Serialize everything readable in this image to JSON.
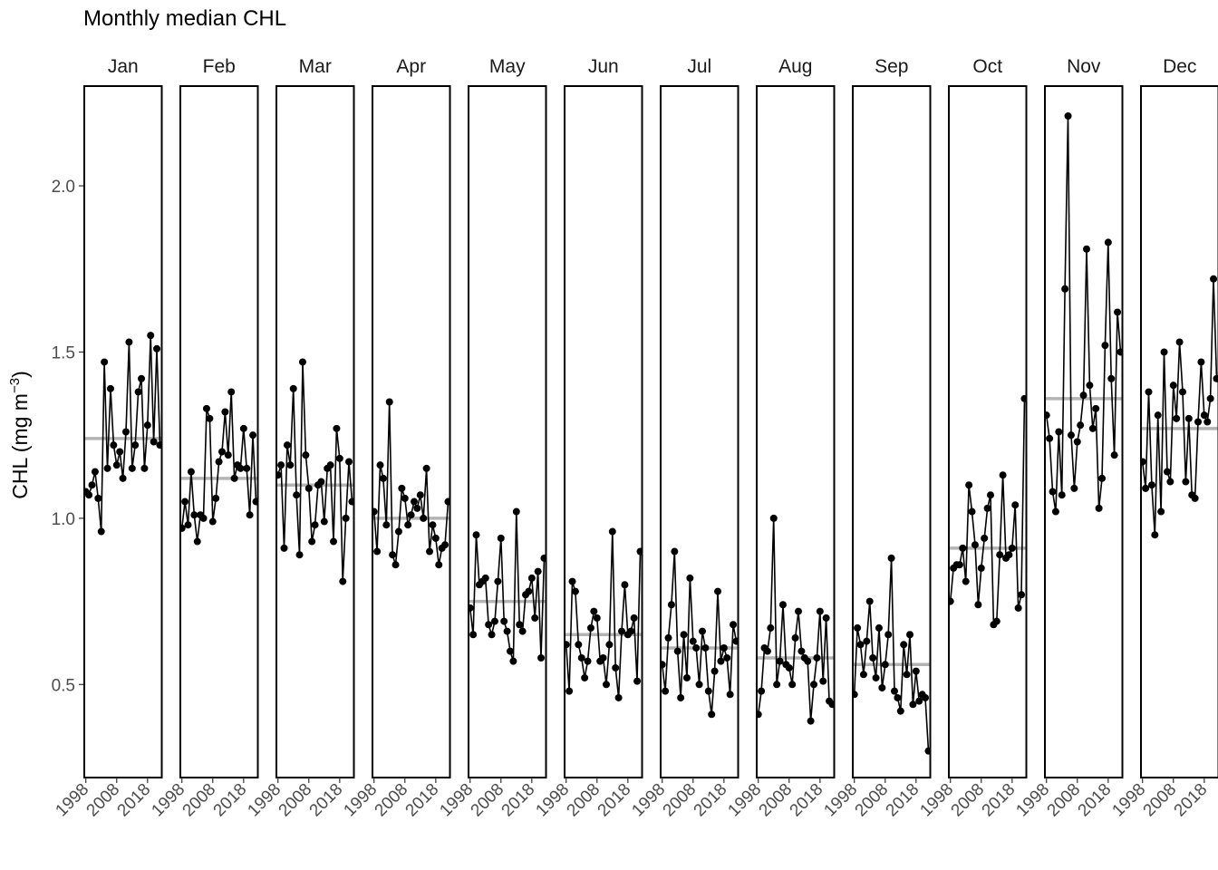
{
  "chart_data": {
    "type": "line",
    "title": "Monthly median CHL",
    "ylabel": "CHL (mg m⁻³)",
    "ylabel_base": "CHL (mg m",
    "ylabel_sup": "−3",
    "ylabel_close": ")",
    "xlabel": "",
    "ylim": [
      0.22,
      2.3
    ],
    "y_ticks": [
      0.5,
      1.0,
      1.5,
      2.0
    ],
    "y_tick_labels": [
      "0.5",
      "1.0",
      "1.5",
      "2.0"
    ],
    "xlim": [
      1997.5,
      2022.6
    ],
    "x_ticks": [
      1998,
      2008,
      2018
    ],
    "x_tick_labels": [
      "1998",
      "2008",
      "2018"
    ],
    "grid": false,
    "legend": "none",
    "colors": {
      "series": "#000000",
      "reference_line": "#b3b3b3",
      "tick_label": "#4d4d4d"
    },
    "years": [
      1998,
      1999,
      2000,
      2001,
      2002,
      2003,
      2004,
      2005,
      2006,
      2007,
      2008,
      2009,
      2010,
      2011,
      2012,
      2013,
      2014,
      2015,
      2016,
      2017,
      2018,
      2019,
      2020,
      2021,
      2022
    ],
    "facets": [
      {
        "month": "Jan",
        "reference": 1.24,
        "values": [
          1.08,
          1.07,
          1.1,
          1.14,
          1.06,
          0.96,
          1.47,
          1.15,
          1.39,
          1.22,
          1.16,
          1.2,
          1.12,
          1.26,
          1.53,
          1.15,
          1.22,
          1.38,
          1.42,
          1.15,
          1.28,
          1.55,
          1.23,
          1.51,
          1.22
        ]
      },
      {
        "month": "Feb",
        "reference": 1.12,
        "values": [
          0.97,
          1.05,
          0.98,
          1.14,
          1.01,
          0.93,
          1.01,
          1.0,
          1.33,
          1.3,
          0.99,
          1.06,
          1.17,
          1.2,
          1.32,
          1.19,
          1.38,
          1.12,
          1.16,
          1.15,
          1.27,
          1.15,
          1.01,
          1.25,
          1.05
        ]
      },
      {
        "month": "Mar",
        "reference": 1.1,
        "values": [
          1.13,
          1.16,
          0.91,
          1.22,
          1.16,
          1.39,
          1.07,
          0.89,
          1.47,
          1.19,
          1.09,
          0.93,
          0.98,
          1.1,
          1.11,
          0.99,
          1.15,
          1.16,
          0.93,
          1.27,
          1.18,
          0.81,
          1.0,
          1.17,
          1.05
        ]
      },
      {
        "month": "Apr",
        "reference": 1.0,
        "values": [
          1.02,
          0.9,
          1.16,
          1.12,
          0.98,
          1.35,
          0.89,
          0.86,
          0.96,
          1.09,
          1.06,
          0.98,
          1.01,
          1.05,
          1.03,
          1.07,
          1.0,
          1.15,
          0.9,
          0.98,
          0.94,
          0.86,
          0.91,
          0.92,
          1.05
        ]
      },
      {
        "month": "May",
        "reference": 0.75,
        "values": [
          0.73,
          0.65,
          0.95,
          0.8,
          0.81,
          0.82,
          0.68,
          0.65,
          0.69,
          0.81,
          0.94,
          0.69,
          0.66,
          0.6,
          0.57,
          1.02,
          0.68,
          0.66,
          0.77,
          0.78,
          0.82,
          0.7,
          0.84,
          0.58,
          0.88
        ]
      },
      {
        "month": "Jun",
        "reference": 0.65,
        "values": [
          0.62,
          0.48,
          0.81,
          0.78,
          0.62,
          0.58,
          0.52,
          0.57,
          0.67,
          0.72,
          0.7,
          0.57,
          0.58,
          0.5,
          0.62,
          0.96,
          0.55,
          0.46,
          0.66,
          0.8,
          0.65,
          0.66,
          0.7,
          0.51,
          0.9
        ]
      },
      {
        "month": "Jul",
        "reference": 0.61,
        "values": [
          0.56,
          0.48,
          0.64,
          0.74,
          0.9,
          0.6,
          0.46,
          0.65,
          0.52,
          0.82,
          0.63,
          0.61,
          0.5,
          0.66,
          0.61,
          0.48,
          0.41,
          0.54,
          0.78,
          0.57,
          0.61,
          0.58,
          0.47,
          0.68,
          0.63
        ]
      },
      {
        "month": "Aug",
        "reference": 0.58,
        "values": [
          0.41,
          0.48,
          0.61,
          0.6,
          0.67,
          1.0,
          0.5,
          0.57,
          0.74,
          0.56,
          0.55,
          0.5,
          0.64,
          0.72,
          0.6,
          0.58,
          0.57,
          0.39,
          0.5,
          0.58,
          0.72,
          0.51,
          0.7,
          0.45,
          0.44
        ]
      },
      {
        "month": "Sep",
        "reference": 0.56,
        "values": [
          0.47,
          0.67,
          0.62,
          0.53,
          0.63,
          0.75,
          0.58,
          0.52,
          0.67,
          0.49,
          0.56,
          0.65,
          0.88,
          0.48,
          0.46,
          0.42,
          0.62,
          0.53,
          0.65,
          0.44,
          0.54,
          0.45,
          0.47,
          0.46,
          0.3
        ]
      },
      {
        "month": "Oct",
        "reference": 0.91,
        "values": [
          0.75,
          0.85,
          0.86,
          0.86,
          0.91,
          0.81,
          1.1,
          1.02,
          0.92,
          0.74,
          0.85,
          0.94,
          1.03,
          1.07,
          0.68,
          0.69,
          0.89,
          1.13,
          0.88,
          0.89,
          0.91,
          1.04,
          0.73,
          0.77,
          1.36
        ]
      },
      {
        "month": "Nov",
        "reference": 1.36,
        "values": [
          1.31,
          1.24,
          1.08,
          1.02,
          1.26,
          1.07,
          1.69,
          2.21,
          1.25,
          1.09,
          1.23,
          1.28,
          1.37,
          1.81,
          1.4,
          1.27,
          1.33,
          1.03,
          1.12,
          1.52,
          1.83,
          1.42,
          1.19,
          1.62,
          1.5
        ]
      },
      {
        "month": "Dec",
        "reference": 1.27,
        "values": [
          1.17,
          1.09,
          1.38,
          1.1,
          0.95,
          1.31,
          1.02,
          1.5,
          1.14,
          1.11,
          1.4,
          1.3,
          1.53,
          1.38,
          1.11,
          1.3,
          1.07,
          1.06,
          1.29,
          1.47,
          1.31,
          1.29,
          1.36,
          1.72,
          1.42
        ]
      }
    ]
  }
}
